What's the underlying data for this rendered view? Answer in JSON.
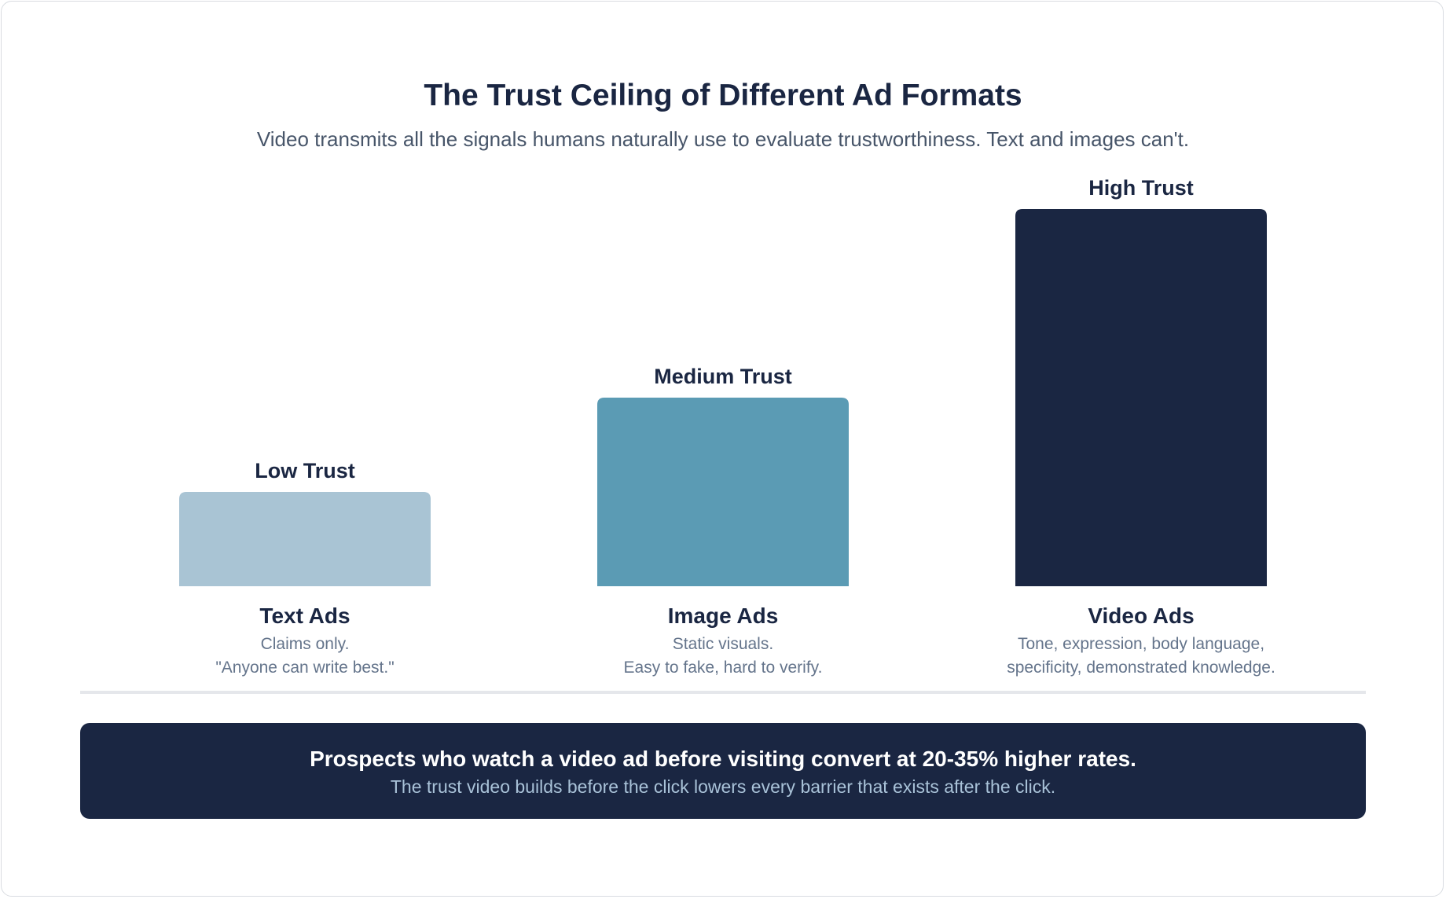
{
  "title": "The Trust Ceiling of Different Ad Formats",
  "subtitle": "Video transmits all the signals humans naturally use to evaluate trustworthiness. Text and images can't.",
  "chart_data": {
    "type": "bar",
    "categories": [
      "Text Ads",
      "Image Ads",
      "Video Ads"
    ],
    "values": [
      1,
      2,
      4
    ],
    "value_labels": [
      "Low Trust",
      "Medium Trust",
      "High Trust"
    ],
    "descriptions": [
      [
        "Claims only.",
        "\"Anyone can write best.\""
      ],
      [
        "Static visuals.",
        "Easy to fake, hard to verify."
      ],
      [
        "Tone, expression, body language,",
        "specificity, demonstrated knowledge."
      ]
    ],
    "colors": [
      "#a9c4d4",
      "#5b9bb4",
      "#1a2642"
    ],
    "ylim": [
      0,
      4
    ],
    "grid": false
  },
  "banner": {
    "headline": "Prospects who watch a video ad before visiting convert at 20-35% higher rates.",
    "subtext": "The trust video builds before the click lowers every barrier that exists after the click."
  }
}
